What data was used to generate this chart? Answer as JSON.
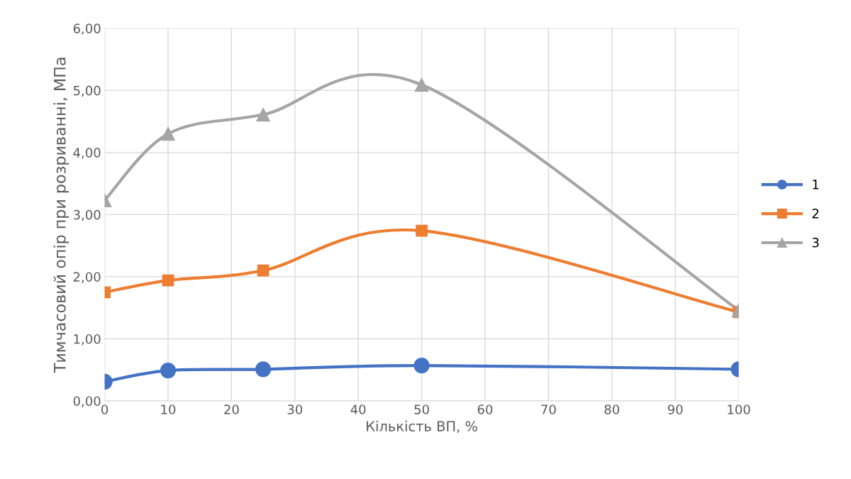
{
  "chart_data": {
    "type": "line",
    "xlabel": "Кількість ВП, %",
    "ylabel": "Тимчасовий опір при розриванні, МПа",
    "x": [
      0,
      10,
      25,
      50,
      100
    ],
    "series": [
      {
        "name": "1",
        "color": "#4472c4",
        "marker": "circle",
        "values": [
          0.31,
          0.49,
          0.51,
          0.57,
          0.51
        ]
      },
      {
        "name": "2",
        "color": "#ed7d31",
        "marker": "square",
        "values": [
          1.75,
          1.94,
          2.1,
          2.74,
          1.43
        ]
      },
      {
        "name": "3",
        "color": "#a5a5a5",
        "marker": "triangle",
        "values": [
          3.23,
          4.3,
          4.61,
          5.09,
          1.46
        ]
      }
    ],
    "xlim": [
      0,
      100
    ],
    "xticks": [
      0,
      10,
      20,
      30,
      40,
      50,
      60,
      70,
      80,
      90,
      100
    ],
    "ylim": [
      0,
      6
    ],
    "yticks": [
      {
        "value": 0,
        "label": "0,00"
      },
      {
        "value": 1,
        "label": "1,00"
      },
      {
        "value": 2,
        "label": "2,00"
      },
      {
        "value": 3,
        "label": "3,00"
      },
      {
        "value": 4,
        "label": "4,00"
      },
      {
        "value": 5,
        "label": "5,00"
      },
      {
        "value": 6,
        "label": "6,00"
      }
    ],
    "grid": true,
    "legend": "right",
    "line_style": "solid"
  }
}
